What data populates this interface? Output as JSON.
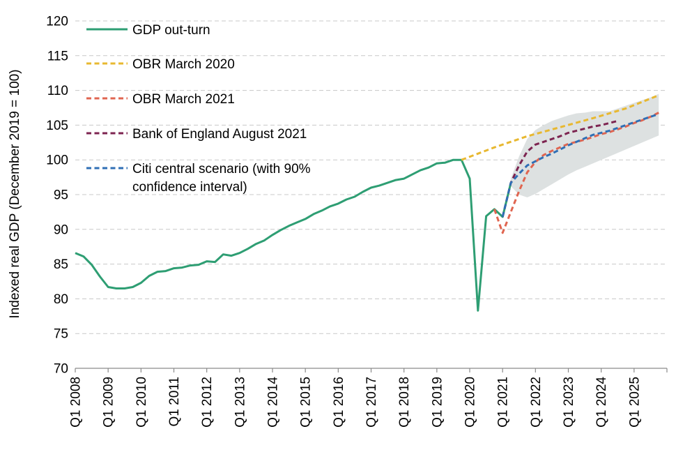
{
  "chart_data": {
    "type": "line",
    "ylabel": "Indexed real GDP (December 2019 = 100)",
    "xlabel": "",
    "ylim": [
      70,
      120
    ],
    "y_ticks": [
      70,
      75,
      80,
      85,
      90,
      95,
      100,
      105,
      110,
      115,
      120
    ],
    "x_tick_labels": [
      "Q1 2008",
      "Q1 2009",
      "Q1 2010",
      "Q1 2011",
      "Q1 2012",
      "Q1 2013",
      "Q1 2014",
      "Q1 2015",
      "Q1 2016",
      "Q1 2017",
      "Q1 2018",
      "Q1 2019",
      "Q1 2020",
      "Q1 2021",
      "Q1 2022",
      "Q1 2023",
      "Q1 2024",
      "Q1 2025"
    ],
    "x_range": [
      "Q1 2008",
      "Q4 2025"
    ],
    "grid": "horizontal dashed",
    "legend_position": "top-left",
    "series": [
      {
        "name": "GDP out-turn",
        "color": "#2e9e73",
        "style": "solid",
        "points": [
          [
            "Q1 2008",
            86.6
          ],
          [
            "Q2 2008",
            86.1
          ],
          [
            "Q3 2008",
            84.9
          ],
          [
            "Q4 2008",
            83.2
          ],
          [
            "Q1 2009",
            81.7
          ],
          [
            "Q2 2009",
            81.5
          ],
          [
            "Q3 2009",
            81.5
          ],
          [
            "Q4 2009",
            81.7
          ],
          [
            "Q1 2010",
            82.3
          ],
          [
            "Q2 2010",
            83.3
          ],
          [
            "Q3 2010",
            83.9
          ],
          [
            "Q4 2010",
            84.0
          ],
          [
            "Q1 2011",
            84.4
          ],
          [
            "Q2 2011",
            84.5
          ],
          [
            "Q3 2011",
            84.8
          ],
          [
            "Q4 2011",
            84.9
          ],
          [
            "Q1 2012",
            85.4
          ],
          [
            "Q2 2012",
            85.3
          ],
          [
            "Q3 2012",
            86.4
          ],
          [
            "Q4 2012",
            86.2
          ],
          [
            "Q1 2013",
            86.6
          ],
          [
            "Q2 2013",
            87.2
          ],
          [
            "Q3 2013",
            87.9
          ],
          [
            "Q4 2013",
            88.4
          ],
          [
            "Q1 2014",
            89.2
          ],
          [
            "Q2 2014",
            89.9
          ],
          [
            "Q3 2014",
            90.5
          ],
          [
            "Q4 2014",
            91.0
          ],
          [
            "Q1 2015",
            91.5
          ],
          [
            "Q2 2015",
            92.2
          ],
          [
            "Q3 2015",
            92.7
          ],
          [
            "Q4 2015",
            93.3
          ],
          [
            "Q1 2016",
            93.7
          ],
          [
            "Q2 2016",
            94.3
          ],
          [
            "Q3 2016",
            94.7
          ],
          [
            "Q4 2016",
            95.4
          ],
          [
            "Q1 2017",
            96.0
          ],
          [
            "Q2 2017",
            96.3
          ],
          [
            "Q3 2017",
            96.7
          ],
          [
            "Q4 2017",
            97.1
          ],
          [
            "Q1 2018",
            97.3
          ],
          [
            "Q2 2018",
            97.9
          ],
          [
            "Q3 2018",
            98.5
          ],
          [
            "Q4 2018",
            98.9
          ],
          [
            "Q1 2019",
            99.5
          ],
          [
            "Q2 2019",
            99.6
          ],
          [
            "Q3 2019",
            100.0
          ],
          [
            "Q4 2019",
            100.0
          ],
          [
            "Q1 2020",
            97.3
          ],
          [
            "Q2 2020",
            78.3
          ],
          [
            "Q3 2020",
            91.9
          ],
          [
            "Q4 2020",
            92.9
          ],
          [
            "Q1 2021",
            91.8
          ],
          [
            "Q2 2021",
            96.7
          ]
        ]
      },
      {
        "name": "OBR March 2020",
        "color": "#e8b830",
        "style": "dashed",
        "points": [
          [
            "Q4 2019",
            100.0
          ],
          [
            "Q4 2020",
            101.8
          ],
          [
            "Q4 2021",
            103.4
          ],
          [
            "Q4 2022",
            104.7
          ],
          [
            "Q4 2023",
            106.0
          ],
          [
            "Q4 2024",
            107.4
          ],
          [
            "Q4 2025",
            109.3
          ]
        ]
      },
      {
        "name": "OBR March 2021",
        "color": "#e06550",
        "style": "dashed",
        "points": [
          [
            "Q4 2020",
            92.9
          ],
          [
            "Q1 2021",
            89.5
          ],
          [
            "Q2 2021",
            92.5
          ],
          [
            "Q3 2021",
            95.5
          ],
          [
            "Q4 2021",
            98.2
          ],
          [
            "Q1 2022",
            99.7
          ],
          [
            "Q2 2022",
            100.7
          ],
          [
            "Q3 2022",
            101.3
          ],
          [
            "Q4 2022",
            101.8
          ],
          [
            "Q1 2023",
            102.3
          ],
          [
            "Q2 2023",
            102.6
          ],
          [
            "Q3 2023",
            102.9
          ],
          [
            "Q4 2023",
            103.3
          ],
          [
            "Q1 2024",
            103.7
          ],
          [
            "Q2 2024",
            104.0
          ],
          [
            "Q3 2024",
            104.4
          ],
          [
            "Q4 2024",
            104.8
          ],
          [
            "Q1 2025",
            105.3
          ],
          [
            "Q2 2025",
            105.7
          ],
          [
            "Q3 2025",
            106.2
          ],
          [
            "Q4 2025",
            106.8
          ]
        ]
      },
      {
        "name": "Bank of England August 2021",
        "color": "#7d2450",
        "style": "dashed",
        "points": [
          [
            "Q1 2021",
            91.8
          ],
          [
            "Q2 2021",
            96.7
          ],
          [
            "Q3 2021",
            99.2
          ],
          [
            "Q4 2021",
            101.2
          ],
          [
            "Q1 2022",
            102.2
          ],
          [
            "Q2 2022",
            102.6
          ],
          [
            "Q3 2022",
            103.0
          ],
          [
            "Q4 2022",
            103.4
          ],
          [
            "Q1 2023",
            103.9
          ],
          [
            "Q2 2023",
            104.2
          ],
          [
            "Q3 2023",
            104.5
          ],
          [
            "Q4 2023",
            104.8
          ],
          [
            "Q1 2024",
            105.0
          ],
          [
            "Q2 2024",
            105.3
          ],
          [
            "Q3 2024",
            105.6
          ]
        ]
      },
      {
        "name": "Citi central scenario (with 90% confidence interval)",
        "color": "#2f6fb5",
        "style": "dashed",
        "points": [
          [
            "Q1 2021",
            91.8
          ],
          [
            "Q2 2021",
            96.7
          ],
          [
            "Q3 2021",
            98.0
          ],
          [
            "Q4 2021",
            99.2
          ],
          [
            "Q1 2022",
            99.8
          ],
          [
            "Q2 2022",
            100.4
          ],
          [
            "Q3 2022",
            100.9
          ],
          [
            "Q4 2022",
            101.5
          ],
          [
            "Q1 2023",
            102.1
          ],
          [
            "Q2 2023",
            102.6
          ],
          [
            "Q3 2023",
            103.1
          ],
          [
            "Q4 2023",
            103.6
          ],
          [
            "Q1 2024",
            103.9
          ],
          [
            "Q2 2024",
            104.2
          ],
          [
            "Q3 2024",
            104.6
          ],
          [
            "Q4 2024",
            105.0
          ],
          [
            "Q1 2025",
            105.4
          ],
          [
            "Q2 2025",
            105.8
          ],
          [
            "Q3 2025",
            106.2
          ],
          [
            "Q4 2025",
            106.6
          ]
        ],
        "confidence_interval": {
          "color": "#dde1e1",
          "upper": [
            [
              "Q2 2021",
              97.3
            ],
            [
              "Q3 2021",
              100.5
            ],
            [
              "Q4 2021",
              103.0
            ],
            [
              "Q1 2022",
              104.3
            ],
            [
              "Q2 2022",
              105.0
            ],
            [
              "Q3 2022",
              105.6
            ],
            [
              "Q4 2022",
              106.0
            ],
            [
              "Q1 2023",
              106.4
            ],
            [
              "Q2 2023",
              106.7
            ],
            [
              "Q3 2023",
              106.8
            ],
            [
              "Q4 2023",
              107.0
            ],
            [
              "Q1 2024",
              107.0
            ],
            [
              "Q2 2024",
              107.0
            ],
            [
              "Q3 2024",
              107.4
            ],
            [
              "Q4 2024",
              107.8
            ],
            [
              "Q1 2025",
              108.2
            ],
            [
              "Q2 2025",
              108.6
            ],
            [
              "Q3 2025",
              109.0
            ],
            [
              "Q4 2025",
              109.5
            ]
          ],
          "lower": [
            [
              "Q2 2021",
              96.2
            ],
            [
              "Q3 2021",
              95.0
            ],
            [
              "Q4 2021",
              94.6
            ],
            [
              "Q1 2022",
              95.1
            ],
            [
              "Q2 2022",
              95.8
            ],
            [
              "Q3 2022",
              96.5
            ],
            [
              "Q4 2022",
              97.2
            ],
            [
              "Q1 2023",
              97.9
            ],
            [
              "Q2 2023",
              98.5
            ],
            [
              "Q3 2023",
              99.0
            ],
            [
              "Q4 2023",
              99.5
            ],
            [
              "Q1 2024",
              100.0
            ],
            [
              "Q2 2024",
              100.5
            ],
            [
              "Q3 2024",
              101.0
            ],
            [
              "Q4 2024",
              101.5
            ],
            [
              "Q1 2025",
              102.0
            ],
            [
              "Q2 2025",
              102.5
            ],
            [
              "Q3 2025",
              103.0
            ],
            [
              "Q4 2025",
              103.5
            ]
          ]
        }
      }
    ],
    "legend": [
      {
        "label": "GDP out-turn",
        "color": "#2e9e73",
        "style": "solid"
      },
      {
        "label": "OBR March 2020",
        "color": "#e8b830",
        "style": "dashed"
      },
      {
        "label": "OBR March 2021",
        "color": "#e06550",
        "style": "dashed"
      },
      {
        "label": "Bank of England August 2021",
        "color": "#7d2450",
        "style": "dashed"
      },
      {
        "label_lines": [
          "Citi central scenario (with 90%",
          "confidence interval)"
        ],
        "color": "#2f6fb5",
        "style": "dashed"
      }
    ]
  }
}
